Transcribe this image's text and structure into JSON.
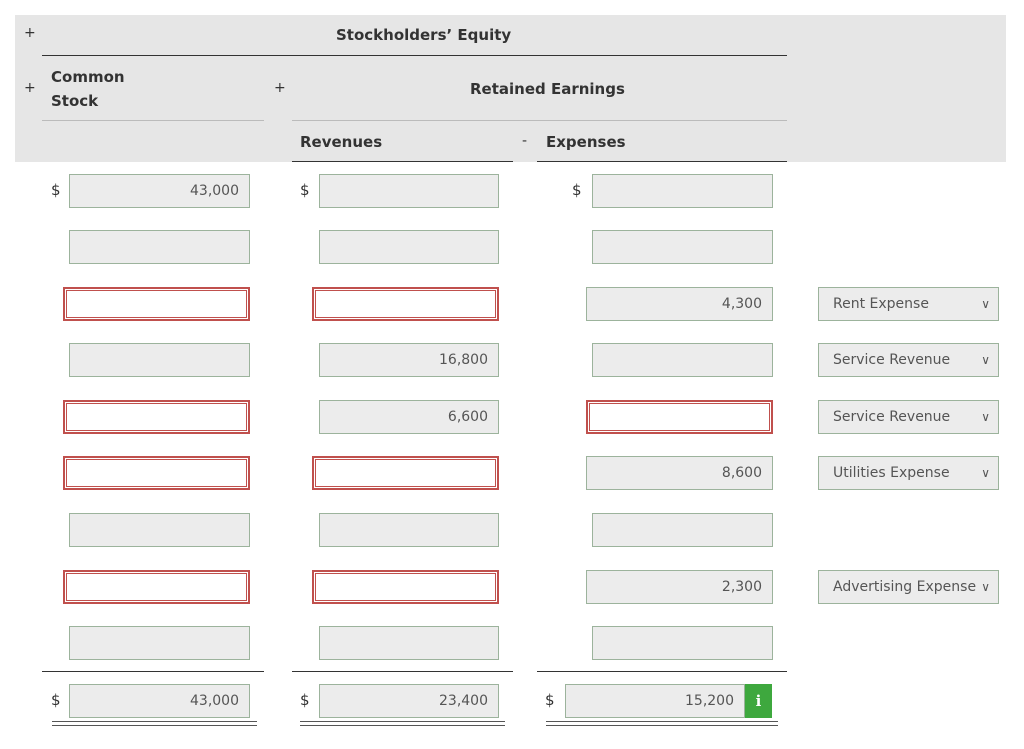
{
  "header": {
    "plus_top": "+",
    "plus_left": "+",
    "plus_mid": "+",
    "minus": "-",
    "stockholders_equity": "Stockholders’ Equity",
    "common_stock_line1": "Common",
    "common_stock_line2": "Stock",
    "retained_earnings": "Retained Earnings",
    "revenues": "Revenues",
    "expenses": "Expenses"
  },
  "currency_symbol": "$",
  "rows": [
    {
      "common_stock": "43,000",
      "revenues": "",
      "expenses": "",
      "account": ""
    },
    {
      "common_stock": "",
      "revenues": "",
      "expenses": "",
      "account": ""
    },
    {
      "common_stock": "",
      "revenues": "",
      "expenses": "4,300",
      "account": "Rent Expense"
    },
    {
      "common_stock": "",
      "revenues": "16,800",
      "expenses": "",
      "account": "Service Revenue"
    },
    {
      "common_stock": "",
      "revenues": "6,600",
      "expenses": "",
      "account": "Service Revenue"
    },
    {
      "common_stock": "",
      "revenues": "",
      "expenses": "8,600",
      "account": "Utilities Expense"
    },
    {
      "common_stock": "",
      "revenues": "",
      "expenses": "",
      "account": ""
    },
    {
      "common_stock": "",
      "revenues": "",
      "expenses": "2,300",
      "account": "Advertising Expense"
    },
    {
      "common_stock": "",
      "revenues": "",
      "expenses": "",
      "account": ""
    }
  ],
  "totals": {
    "common_stock": "43,000",
    "revenues": "23,400",
    "expenses": "15,200"
  },
  "info_icon_label": "i",
  "colors": {
    "error_border": "#c0504d",
    "field_border": "#9cb39c",
    "info_green": "#3ea83e",
    "header_band": "#e6e6e6"
  }
}
